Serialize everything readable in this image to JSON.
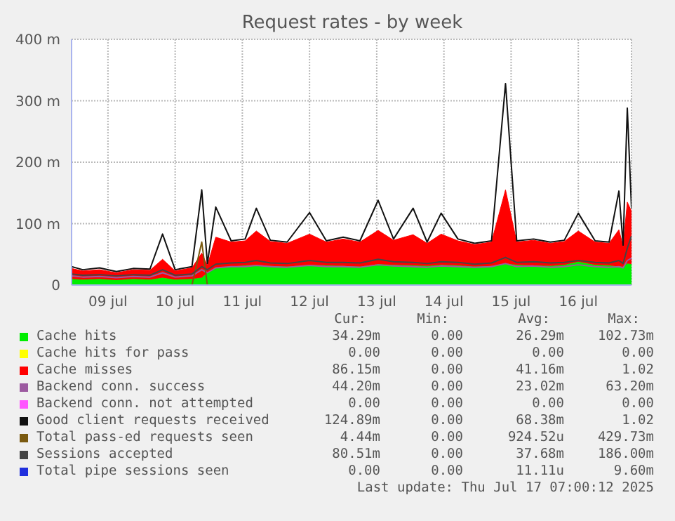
{
  "chart_data": {
    "type": "area",
    "title": "Request rates - by week",
    "stacked": true,
    "grid": true,
    "legend": "bottom",
    "x": [
      "2025-07-08T23:00",
      "2025-07-09T03:00",
      "2025-07-09T09:00",
      "2025-07-09T15:00",
      "2025-07-09T21:00",
      "2025-07-10T03:00",
      "2025-07-10T07:30",
      "2025-07-10T12:00",
      "2025-07-10T18:00",
      "2025-07-10T21:30",
      "2025-07-10T23:30",
      "2025-07-11T02:30",
      "2025-07-11T08:00",
      "2025-07-11T13:00",
      "2025-07-11T17:00",
      "2025-07-11T22:00",
      "2025-07-12T04:00",
      "2025-07-12T12:00",
      "2025-07-12T18:00",
      "2025-07-13T00:00",
      "2025-07-13T06:00",
      "2025-07-13T12:30",
      "2025-07-13T18:00",
      "2025-07-14T01:00",
      "2025-07-14T06:00",
      "2025-07-14T11:00",
      "2025-07-14T17:00",
      "2025-07-14T23:00",
      "2025-07-15T05:00",
      "2025-07-15T10:00",
      "2025-07-15T14:00",
      "2025-07-15T20:00",
      "2025-07-16T02:00",
      "2025-07-16T07:00",
      "2025-07-16T12:00",
      "2025-07-16T18:00",
      "2025-07-16T23:00",
      "2025-07-17T02:30",
      "2025-07-17T04:00",
      "2025-07-17T05:30",
      "2025-07-17T07:00"
    ],
    "xlim": [
      "2025-07-08T23:00",
      "2025-07-17T07:00"
    ],
    "xticks": [
      {
        "value": "2025-07-09T12:00",
        "label": "09 jul"
      },
      {
        "value": "2025-07-10T12:00",
        "label": "10 jul"
      },
      {
        "value": "2025-07-11T12:00",
        "label": "11 jul"
      },
      {
        "value": "2025-07-12T12:00",
        "label": "12 jul"
      },
      {
        "value": "2025-07-13T12:00",
        "label": "13 jul"
      },
      {
        "value": "2025-07-14T12:00",
        "label": "14 jul"
      },
      {
        "value": "2025-07-15T12:00",
        "label": "15 jul"
      },
      {
        "value": "2025-07-16T12:00",
        "label": "16 jul"
      }
    ],
    "ylim": [
      0,
      400
    ],
    "yticks": [
      0,
      {
        "value": 100,
        "label": "100 m"
      },
      {
        "value": 200,
        "label": "200 m"
      },
      {
        "value": 300,
        "label": "300 m"
      },
      {
        "value": 400,
        "label": "400 m"
      }
    ],
    "series": [
      {
        "name": "Cache hits",
        "type": "area",
        "color": "#00ee00",
        "values": [
          10,
          9,
          10,
          8,
          10,
          9,
          12,
          9,
          10,
          12,
          20,
          28,
          30,
          32,
          33,
          31,
          30,
          33,
          32,
          31,
          30,
          34,
          33,
          32,
          31,
          33,
          32,
          30,
          31,
          35,
          33,
          32,
          31,
          33,
          38,
          33,
          32,
          30,
          30,
          35,
          34
        ]
      },
      {
        "name": "Cache hits for pass",
        "type": "line",
        "color": "#ffff00",
        "values": [
          null,
          null,
          null,
          null,
          null,
          null,
          null,
          null,
          null,
          null,
          null,
          null,
          null,
          null,
          null,
          null,
          null,
          null,
          null,
          null,
          null,
          null,
          null,
          null,
          null,
          null,
          null,
          null,
          null,
          null,
          null,
          null,
          null,
          null,
          null,
          null,
          null,
          null,
          null,
          null,
          null
        ]
      },
      {
        "name": "Cache misses",
        "type": "area",
        "color": "#ff0000",
        "values": [
          17,
          14,
          15,
          12,
          15,
          15,
          30,
          14,
          18,
          40,
          12,
          50,
          40,
          40,
          55,
          40,
          38,
          50,
          38,
          44,
          40,
          55,
          40,
          50,
          37,
          50,
          40,
          36,
          39,
          120,
          37,
          41,
          37,
          38,
          50,
          37,
          36,
          60,
          33,
          100,
          86
        ]
      },
      {
        "name": "Backend conn. success",
        "type": "line",
        "color": "#9c5aa0",
        "values": [
          15,
          13,
          14,
          12,
          14,
          13,
          20,
          13,
          15,
          25,
          20,
          28,
          30,
          30,
          32,
          30,
          29,
          32,
          30,
          30,
          29,
          33,
          31,
          30,
          29,
          31,
          30,
          29,
          30,
          35,
          30,
          31,
          29,
          30,
          33,
          30,
          29,
          30,
          28,
          40,
          44
        ]
      },
      {
        "name": "Backend conn. not attempted",
        "type": "line",
        "color": "#ff55ff",
        "values": [
          null,
          null,
          null,
          null,
          null,
          null,
          null,
          null,
          null,
          null,
          null,
          null,
          null,
          null,
          null,
          null,
          null,
          null,
          null,
          null,
          null,
          null,
          null,
          null,
          null,
          null,
          null,
          null,
          null,
          null,
          null,
          null,
          null,
          null,
          null,
          null,
          null,
          null,
          null,
          null,
          null
        ]
      },
      {
        "name": "Good client requests received",
        "type": "line",
        "color": "#111111",
        "values": [
          30,
          25,
          28,
          22,
          27,
          26,
          83,
          25,
          30,
          155,
          35,
          127,
          72,
          75,
          125,
          73,
          70,
          118,
          72,
          78,
          72,
          138,
          75,
          125,
          70,
          117,
          75,
          68,
          72,
          328,
          72,
          75,
          70,
          73,
          117,
          72,
          70,
          153,
          65,
          288,
          125
        ]
      },
      {
        "name": "Total pass-ed requests seen",
        "type": "line",
        "color": "#7a5a10",
        "values": [
          null,
          null,
          null,
          null,
          null,
          null,
          null,
          null,
          0,
          70,
          0,
          null,
          null,
          null,
          null,
          null,
          null,
          null,
          null,
          null,
          null,
          null,
          null,
          null,
          null,
          null,
          null,
          null,
          null,
          null,
          null,
          null,
          null,
          null,
          null,
          null,
          null,
          null,
          null,
          null,
          null
        ]
      },
      {
        "name": "Sessions accepted",
        "type": "line",
        "color": "#444444",
        "values": [
          18,
          16,
          17,
          15,
          17,
          16,
          25,
          16,
          18,
          30,
          25,
          34,
          36,
          37,
          40,
          36,
          35,
          40,
          37,
          37,
          36,
          42,
          38,
          37,
          35,
          38,
          37,
          34,
          36,
          45,
          37,
          38,
          36,
          37,
          40,
          37,
          36,
          40,
          35,
          60,
          80
        ]
      },
      {
        "name": "Total pipe sessions seen",
        "type": "line",
        "color": "#2030dd",
        "values": [
          null,
          null,
          null,
          null,
          null,
          null,
          null,
          null,
          null,
          null,
          null,
          null,
          null,
          null,
          null,
          null,
          null,
          null,
          null,
          null,
          null,
          null,
          null,
          null,
          null,
          null,
          null,
          null,
          null,
          null,
          null,
          null,
          null,
          null,
          null,
          null,
          null,
          null,
          null,
          null,
          null
        ]
      }
    ],
    "annotations": [
      "Cur:",
      "Min:",
      "Avg:",
      "Max:",
      "34.29m",
      "0.00",
      "26.29m",
      "102.73m",
      "0.00",
      "0.00",
      "0.00",
      "0.00",
      "86.15m",
      "0.00",
      "41.16m",
      "1.02",
      "44.20m",
      "0.00",
      "23.02m",
      "63.20m",
      "0.00",
      "0.00",
      "0.00",
      "0.00",
      "124.89m",
      "0.00",
      "68.38m",
      "1.02",
      "4.44m",
      "0.00",
      "924.52u",
      "429.73m",
      "80.51m",
      "0.00",
      "37.68m",
      "186.00m",
      "0.00",
      "0.00",
      "11.11u",
      "9.60m",
      "Last update: Thu Jul 17 07:00:12 2025"
    ]
  }
}
